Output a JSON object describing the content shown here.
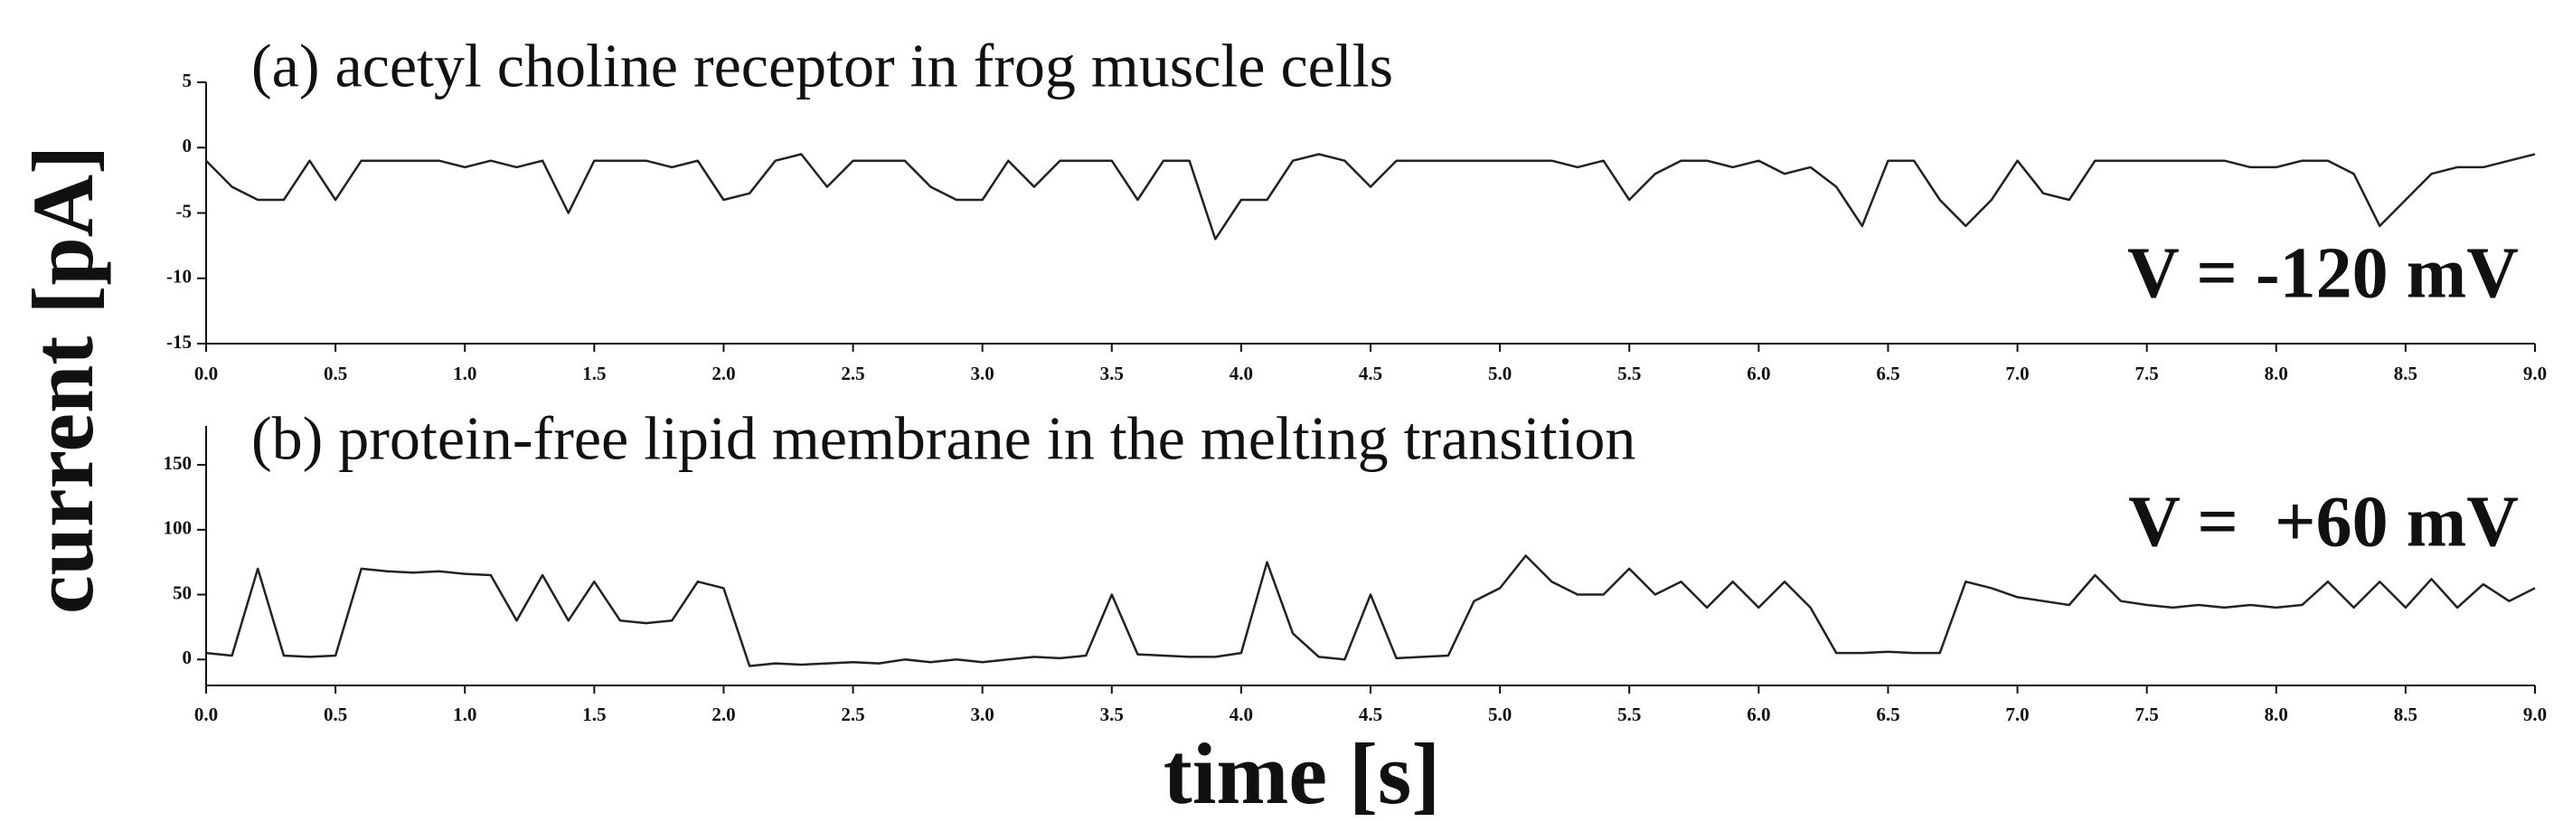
{
  "ylabel": "current [pA]",
  "xlabel": "time [s]",
  "chart_data": [
    {
      "type": "line",
      "title": "(a) acetyl choline receptor in frog muscle cells",
      "annotation": "V = -120 mV",
      "x": [
        0,
        0.1,
        0.2,
        0.3,
        0.4,
        0.5,
        0.6,
        0.7,
        0.8,
        0.9,
        1,
        1.1,
        1.2,
        1.3,
        1.4,
        1.5,
        1.6,
        1.7,
        1.8,
        1.9,
        2,
        2.1,
        2.2,
        2.3,
        2.4,
        2.5,
        2.6,
        2.7,
        2.8,
        2.9,
        3,
        3.1,
        3.2,
        3.3,
        3.4,
        3.5,
        3.6,
        3.7,
        3.8,
        3.9,
        4,
        4.1,
        4.2,
        4.3,
        4.4,
        4.5,
        4.6,
        4.7,
        4.8,
        4.9,
        5,
        5.1,
        5.2,
        5.3,
        5.4,
        5.5,
        5.6,
        5.7,
        5.8,
        5.9,
        6,
        6.1,
        6.2,
        6.3,
        6.4,
        6.5,
        6.6,
        6.7,
        6.8,
        6.9,
        7,
        7.1,
        7.2,
        7.3,
        7.4,
        7.5,
        7.6,
        7.7,
        7.8,
        7.9,
        8,
        8.1,
        8.2,
        8.3,
        8.4,
        8.5,
        8.6,
        8.7,
        8.8,
        8.9,
        9
      ],
      "series": [
        {
          "color": "#222222",
          "values": [
            -1,
            -3,
            -4,
            -4,
            -1,
            -4,
            -1,
            -1,
            -1,
            -1,
            -1.5,
            -1,
            -1.5,
            -1,
            -5,
            -1,
            -1,
            -1,
            -1.5,
            -1,
            -4,
            -3.5,
            -1,
            -0.5,
            -3,
            -1,
            -1,
            -1,
            -3,
            -4,
            -4,
            -1,
            -3,
            -1,
            -1,
            -1,
            -4,
            -1,
            -1,
            -7,
            -4,
            -4,
            -1,
            -0.5,
            -1,
            -3,
            -1,
            -1,
            -1,
            -1,
            -1,
            -1,
            -1,
            -1.5,
            -1,
            -4,
            -2,
            -1,
            -1,
            -1.5,
            -1,
            -2,
            -1.5,
            -3,
            -6,
            -1,
            -1,
            -4,
            -6,
            -4,
            -1,
            -3.5,
            -4,
            -1,
            -1,
            -1,
            -1,
            -1,
            -1,
            -1.5,
            -1.5,
            -1,
            -1,
            -2,
            -6,
            -4,
            -2,
            -1.5,
            -1.5,
            -1,
            -0.5
          ]
        }
      ],
      "xlim": [
        0,
        9
      ],
      "ylim": [
        -15,
        5
      ],
      "yticks": [
        5,
        0,
        -5,
        -10,
        -15
      ],
      "xticks": [
        {
          "value": 0,
          "label": "0.0"
        },
        0.5,
        {
          "value": 1,
          "label": "1.0"
        },
        1.5,
        {
          "value": 2,
          "label": "2.0"
        },
        2.5,
        {
          "value": 3,
          "label": "3.0"
        },
        3.5,
        {
          "value": 4,
          "label": "4.0"
        },
        4.5,
        {
          "value": 5,
          "label": "5.0"
        },
        5.5,
        {
          "value": 6,
          "label": "6.0"
        },
        6.5,
        {
          "value": 7,
          "label": "7.0"
        },
        7.5,
        {
          "value": 8,
          "label": "8.0"
        },
        8.5,
        {
          "value": 9,
          "label": "9.0"
        }
      ]
    },
    {
      "type": "line",
      "title": "(b) protein-free lipid membrane in the melting transition",
      "annotation": "V =  +60 mV",
      "x": [
        0,
        0.1,
        0.2,
        0.3,
        0.4,
        0.5,
        0.6,
        0.7,
        0.8,
        0.9,
        1,
        1.1,
        1.2,
        1.3,
        1.4,
        1.5,
        1.6,
        1.7,
        1.8,
        1.9,
        2,
        2.1,
        2.2,
        2.3,
        2.4,
        2.5,
        2.6,
        2.7,
        2.8,
        2.9,
        3,
        3.1,
        3.2,
        3.3,
        3.4,
        3.5,
        3.6,
        3.7,
        3.8,
        3.9,
        4,
        4.1,
        4.2,
        4.3,
        4.4,
        4.5,
        4.6,
        4.7,
        4.8,
        4.9,
        5,
        5.1,
        5.2,
        5.3,
        5.4,
        5.5,
        5.6,
        5.7,
        5.8,
        5.9,
        6,
        6.1,
        6.2,
        6.3,
        6.4,
        6.5,
        6.6,
        6.7,
        6.8,
        6.9,
        7,
        7.1,
        7.2,
        7.3,
        7.4,
        7.5,
        7.6,
        7.7,
        7.8,
        7.9,
        8,
        8.1,
        8.2,
        8.3,
        8.4,
        8.5,
        8.6,
        8.7,
        8.8,
        8.9,
        9
      ],
      "series": [
        {
          "color": "#222222",
          "values": [
            5,
            3,
            70,
            3,
            2,
            3,
            70,
            68,
            67,
            68,
            66,
            65,
            30,
            65,
            30,
            60,
            30,
            28,
            30,
            60,
            55,
            -5,
            -3,
            -4,
            -3,
            -2,
            -3,
            0,
            -2,
            0,
            -2,
            0,
            2,
            1,
            3,
            50,
            4,
            3,
            2,
            2,
            5,
            75,
            20,
            2,
            0,
            50,
            1,
            2,
            3,
            45,
            55,
            80,
            60,
            50,
            50,
            70,
            50,
            60,
            40,
            60,
            40,
            60,
            40,
            5,
            5,
            6,
            5,
            5,
            60,
            55,
            48,
            45,
            42,
            65,
            45,
            42,
            40,
            42,
            40,
            42,
            40,
            42,
            60,
            40,
            60,
            40,
            62,
            40,
            58,
            45,
            55
          ]
        }
      ],
      "xlim": [
        0,
        9
      ],
      "ylim": [
        -20,
        180
      ],
      "yticks": [
        0,
        50,
        100,
        150
      ],
      "xticks": [
        {
          "value": 0,
          "label": "0.0"
        },
        0.5,
        {
          "value": 1,
          "label": "1.0"
        },
        1.5,
        {
          "value": 2,
          "label": "2.0"
        },
        2.5,
        {
          "value": 3,
          "label": "3.0"
        },
        3.5,
        {
          "value": 4,
          "label": "4.0"
        },
        4.5,
        {
          "value": 5,
          "label": "5.0"
        },
        5.5,
        {
          "value": 6,
          "label": "6.0"
        },
        6.5,
        {
          "value": 7,
          "label": "7.0"
        },
        7.5,
        {
          "value": 8,
          "label": "8.0"
        },
        8.5,
        {
          "value": 9,
          "label": "9.0"
        }
      ]
    }
  ]
}
